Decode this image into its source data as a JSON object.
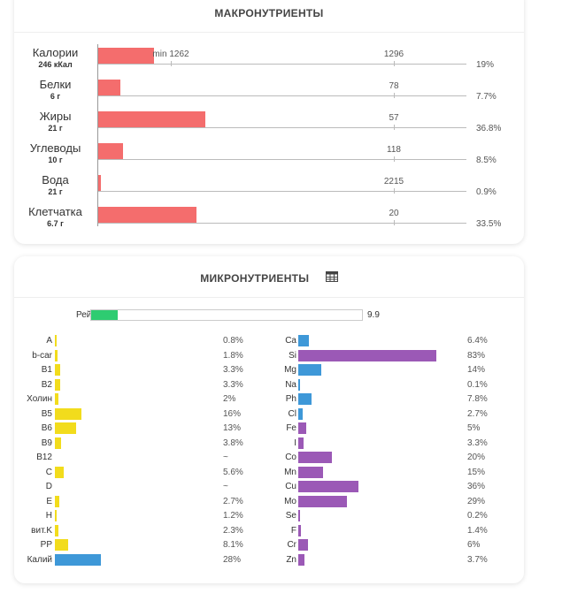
{
  "macro": {
    "title": "МАКРОНУТРИЕНТЫ",
    "min_label": "min 1262",
    "rows": [
      {
        "name": "Калории",
        "sub": "246 кКал",
        "percent": 19,
        "percent_label": "19%",
        "norm": "1296"
      },
      {
        "name": "Белки",
        "sub": "6 г",
        "percent": 7.7,
        "percent_label": "7.7%",
        "norm": "78"
      },
      {
        "name": "Жиры",
        "sub": "21 г",
        "percent": 36.8,
        "percent_label": "36.8%",
        "norm": "57"
      },
      {
        "name": "Углеводы",
        "sub": "10 г",
        "percent": 8.5,
        "percent_label": "8.5%",
        "norm": "118"
      },
      {
        "name": "Вода",
        "sub": "21 г",
        "percent": 0.9,
        "percent_label": "0.9%",
        "norm": "2215"
      },
      {
        "name": "Клетчатка",
        "sub": "6.7 г",
        "percent": 33.5,
        "percent_label": "33.5%",
        "norm": "20"
      }
    ]
  },
  "micro": {
    "title": "МИКРОНУТРИЕНТЫ",
    "table_icon": "table-icon",
    "rating": {
      "label": "Рейтинг",
      "value": 9.9,
      "value_label": "9.9",
      "max": 100
    },
    "colors": {
      "vitamin": "#f2dc1c",
      "mineral": "#3e98d8",
      "trace": "#9b59b6",
      "rating": "#2ecc71",
      "macro": "#f46d6d"
    },
    "left": [
      {
        "name": "A",
        "value": 0.8,
        "label": "0.8%",
        "color": "vitamin"
      },
      {
        "name": "b-car",
        "value": 1.8,
        "label": "1.8%",
        "color": "vitamin"
      },
      {
        "name": "B1",
        "value": 3.3,
        "label": "3.3%",
        "color": "vitamin"
      },
      {
        "name": "B2",
        "value": 3.3,
        "label": "3.3%",
        "color": "vitamin"
      },
      {
        "name": "Холин",
        "value": 2,
        "label": "2%",
        "color": "vitamin"
      },
      {
        "name": "B5",
        "value": 16,
        "label": "16%",
        "color": "vitamin"
      },
      {
        "name": "B6",
        "value": 13,
        "label": "13%",
        "color": "vitamin"
      },
      {
        "name": "B9",
        "value": 3.8,
        "label": "3.8%",
        "color": "vitamin"
      },
      {
        "name": "B12",
        "value": 0,
        "label": "~",
        "color": "vitamin"
      },
      {
        "name": "C",
        "value": 5.6,
        "label": "5.6%",
        "color": "vitamin"
      },
      {
        "name": "D",
        "value": 0,
        "label": "~",
        "color": "vitamin"
      },
      {
        "name": "E",
        "value": 2.7,
        "label": "2.7%",
        "color": "vitamin"
      },
      {
        "name": "H",
        "value": 1.2,
        "label": "1.2%",
        "color": "vitamin"
      },
      {
        "name": "вит.K",
        "value": 2.3,
        "label": "2.3%",
        "color": "vitamin"
      },
      {
        "name": "PP",
        "value": 8.1,
        "label": "8.1%",
        "color": "vitamin"
      },
      {
        "name": "Калий",
        "value": 28,
        "label": "28%",
        "color": "mineral"
      }
    ],
    "right": [
      {
        "name": "Ca",
        "value": 6.4,
        "label": "6.4%",
        "color": "mineral"
      },
      {
        "name": "Si",
        "value": 83,
        "label": "83%",
        "color": "trace"
      },
      {
        "name": "Mg",
        "value": 14,
        "label": "14%",
        "color": "mineral"
      },
      {
        "name": "Na",
        "value": 0.1,
        "label": "0.1%",
        "color": "mineral"
      },
      {
        "name": "Ph",
        "value": 7.8,
        "label": "7.8%",
        "color": "mineral"
      },
      {
        "name": "Cl",
        "value": 2.7,
        "label": "2.7%",
        "color": "mineral"
      },
      {
        "name": "Fe",
        "value": 5,
        "label": "5%",
        "color": "trace"
      },
      {
        "name": "I",
        "value": 3.3,
        "label": "3.3%",
        "color": "trace"
      },
      {
        "name": "Co",
        "value": 20,
        "label": "20%",
        "color": "trace"
      },
      {
        "name": "Mn",
        "value": 15,
        "label": "15%",
        "color": "trace"
      },
      {
        "name": "Cu",
        "value": 36,
        "label": "36%",
        "color": "trace"
      },
      {
        "name": "Mo",
        "value": 29,
        "label": "29%",
        "color": "trace"
      },
      {
        "name": "Se",
        "value": 0.2,
        "label": "0.2%",
        "color": "trace"
      },
      {
        "name": "F",
        "value": 1.4,
        "label": "1.4%",
        "color": "trace"
      },
      {
        "name": "Cr",
        "value": 6,
        "label": "6%",
        "color": "trace"
      },
      {
        "name": "Zn",
        "value": 3.7,
        "label": "3.7%",
        "color": "trace"
      }
    ]
  },
  "chart_data": [
    {
      "type": "bar",
      "title": "МАКРОНУТРИЕНТЫ",
      "orientation": "horizontal",
      "categories": [
        "Калории",
        "Белки",
        "Жиры",
        "Углеводы",
        "Вода",
        "Клетчатка"
      ],
      "values": [
        19,
        7.7,
        36.8,
        8.5,
        0.9,
        33.5
      ],
      "norms": [
        1296,
        78,
        57,
        118,
        2215,
        20
      ],
      "amounts": [
        "246 кКал",
        "6 г",
        "21 г",
        "10 г",
        "21 г",
        "6.7 г"
      ],
      "annotation": "min 1262",
      "xlim": [
        0,
        100
      ]
    },
    {
      "type": "bar",
      "title": "МИКРОНУТРИЕНТЫ",
      "orientation": "horizontal",
      "categories": [
        "A",
        "b-car",
        "B1",
        "B2",
        "Холин",
        "B5",
        "B6",
        "B9",
        "B12",
        "C",
        "D",
        "E",
        "H",
        "вит.K",
        "PP",
        "Калий"
      ],
      "values": [
        0.8,
        1.8,
        3.3,
        3.3,
        2,
        16,
        13,
        3.8,
        null,
        5.6,
        null,
        2.7,
        1.2,
        2.3,
        8.1,
        28
      ]
    },
    {
      "type": "bar",
      "orientation": "horizontal",
      "categories": [
        "Ca",
        "Si",
        "Mg",
        "Na",
        "Ph",
        "Cl",
        "Fe",
        "I",
        "Co",
        "Mn",
        "Cu",
        "Mo",
        "Se",
        "F",
        "Cr",
        "Zn"
      ],
      "values": [
        6.4,
        83,
        14,
        0.1,
        7.8,
        2.7,
        5,
        3.3,
        20,
        15,
        36,
        29,
        0.2,
        1.4,
        6,
        3.7
      ]
    }
  ]
}
